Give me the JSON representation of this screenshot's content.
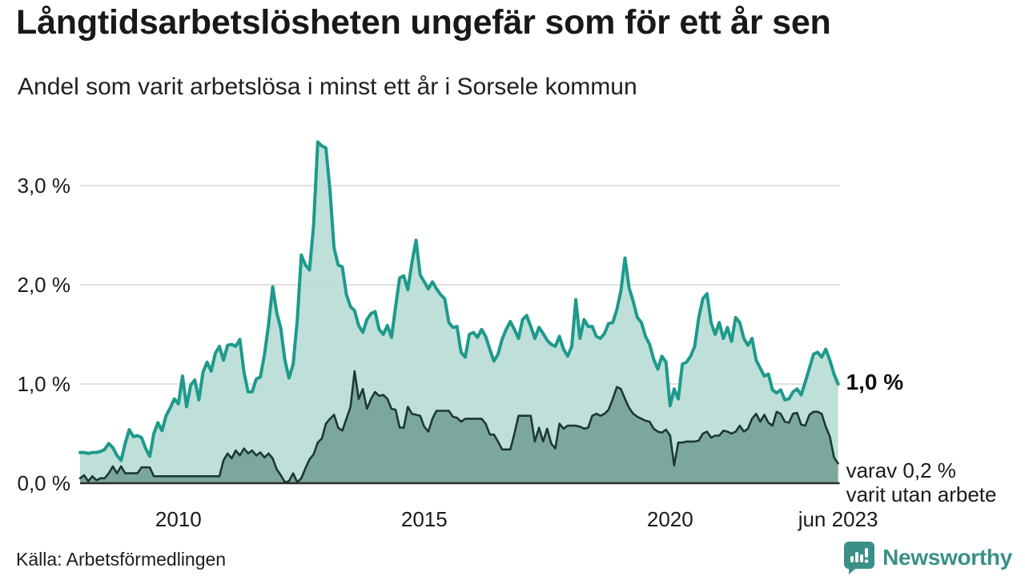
{
  "header": {
    "title": "Långtidsarbetslösheten ungefär som för ett år sen",
    "subtitle": "Andel som varit arbetslösa i minst ett år i Sorsele kommun"
  },
  "chart_data": {
    "type": "area",
    "unit": "%",
    "title": "Andel som varit arbetslösa i minst ett år i Sorsele kommun",
    "x_start_year": 2008,
    "x_end_label_year": 2023.4167,
    "points_per_year": 12,
    "grid": "horizontal",
    "ylim": [
      0,
      3.6
    ],
    "y_ticks": [
      {
        "label": "0,0 %",
        "value": 0
      },
      {
        "label": "1,0 %",
        "value": 1
      },
      {
        "label": "2,0 %",
        "value": 2
      },
      {
        "label": "3,0 %",
        "value": 3
      }
    ],
    "x_ticks": [
      {
        "label": "2010",
        "year": 2010
      },
      {
        "label": "2015",
        "year": 2015
      },
      {
        "label": "2020",
        "year": 2020
      },
      {
        "label": "jun 2023",
        "year": 2023.4167
      }
    ],
    "series": [
      {
        "name": "Andel arbetslösa i minst ett år",
        "line_color": "#1d9a8b",
        "fill_color": "#b8dcd5",
        "values": [
          0.31,
          0.31,
          0.3,
          0.31,
          0.31,
          0.32,
          0.34,
          0.4,
          0.36,
          0.28,
          0.23,
          0.4,
          0.54,
          0.47,
          0.48,
          0.46,
          0.35,
          0.27,
          0.5,
          0.61,
          0.53,
          0.68,
          0.76,
          0.85,
          0.8,
          1.08,
          0.77,
          0.99,
          1.04,
          0.84,
          1.12,
          1.22,
          1.13,
          1.31,
          1.38,
          1.24,
          1.39,
          1.4,
          1.38,
          1.45,
          1.12,
          0.92,
          0.92,
          1.05,
          1.07,
          1.3,
          1.6,
          1.98,
          1.72,
          1.56,
          1.24,
          1.06,
          1.2,
          1.64,
          2.3,
          2.2,
          2.15,
          2.6,
          3.44,
          3.4,
          3.38,
          2.95,
          2.37,
          2.2,
          2.18,
          1.9,
          1.78,
          1.74,
          1.59,
          1.52,
          1.65,
          1.71,
          1.73,
          1.55,
          1.5,
          1.59,
          1.47,
          1.78,
          2.07,
          2.09,
          1.95,
          2.23,
          2.45,
          2.1,
          2.03,
          1.96,
          2.03,
          1.96,
          1.9,
          1.86,
          1.62,
          1.57,
          1.58,
          1.32,
          1.27,
          1.5,
          1.52,
          1.47,
          1.55,
          1.48,
          1.35,
          1.23,
          1.3,
          1.45,
          1.55,
          1.63,
          1.55,
          1.46,
          1.65,
          1.69,
          1.58,
          1.46,
          1.57,
          1.51,
          1.44,
          1.4,
          1.38,
          1.48,
          1.35,
          1.28,
          1.38,
          1.85,
          1.46,
          1.65,
          1.58,
          1.58,
          1.48,
          1.46,
          1.51,
          1.61,
          1.62,
          1.75,
          1.94,
          2.27,
          1.97,
          1.83,
          1.67,
          1.62,
          1.48,
          1.4,
          1.25,
          1.15,
          1.28,
          1.22,
          0.78,
          0.95,
          0.85,
          1.2,
          1.22,
          1.28,
          1.38,
          1.67,
          1.86,
          1.91,
          1.62,
          1.5,
          1.62,
          1.46,
          1.57,
          1.43,
          1.67,
          1.62,
          1.46,
          1.39,
          1.46,
          1.24,
          1.16,
          1.08,
          1.1,
          0.94,
          0.91,
          0.94,
          0.84,
          0.85,
          0.92,
          0.95,
          0.89,
          1.02,
          1.16,
          1.3,
          1.32,
          1.27,
          1.35,
          1.24,
          1.1,
          1.0
        ]
      },
      {
        "name": "varav utan arbete",
        "line_color": "#1c3832",
        "fill_color": "#7aa59c",
        "values": [
          0.05,
          0.08,
          0.02,
          0.07,
          0.03,
          0.05,
          0.05,
          0.1,
          0.17,
          0.1,
          0.17,
          0.1,
          0.1,
          0.1,
          0.1,
          0.16,
          0.16,
          0.16,
          0.07,
          0.07,
          0.07,
          0.07,
          0.07,
          0.07,
          0.07,
          0.07,
          0.07,
          0.07,
          0.07,
          0.07,
          0.07,
          0.07,
          0.07,
          0.07,
          0.07,
          0.23,
          0.3,
          0.25,
          0.33,
          0.28,
          0.35,
          0.3,
          0.33,
          0.28,
          0.31,
          0.26,
          0.3,
          0.25,
          0.14,
          0.08,
          0.01,
          0.02,
          0.1,
          0.01,
          0.05,
          0.15,
          0.24,
          0.29,
          0.41,
          0.45,
          0.6,
          0.65,
          0.69,
          0.56,
          0.53,
          0.65,
          0.77,
          1.13,
          0.85,
          0.95,
          0.75,
          0.85,
          0.92,
          0.88,
          0.89,
          0.85,
          0.75,
          0.74,
          0.56,
          0.56,
          0.77,
          0.7,
          0.69,
          0.68,
          0.57,
          0.52,
          0.65,
          0.73,
          0.73,
          0.73,
          0.73,
          0.67,
          0.66,
          0.62,
          0.65,
          0.65,
          0.65,
          0.65,
          0.65,
          0.6,
          0.49,
          0.49,
          0.42,
          0.34,
          0.34,
          0.34,
          0.5,
          0.68,
          0.68,
          0.68,
          0.68,
          0.42,
          0.56,
          0.42,
          0.55,
          0.4,
          0.35,
          0.6,
          0.55,
          0.58,
          0.58,
          0.58,
          0.57,
          0.55,
          0.56,
          0.68,
          0.7,
          0.68,
          0.7,
          0.74,
          0.85,
          0.97,
          0.95,
          0.85,
          0.76,
          0.7,
          0.67,
          0.65,
          0.63,
          0.62,
          0.55,
          0.52,
          0.51,
          0.54,
          0.48,
          0.18,
          0.41,
          0.41,
          0.42,
          0.42,
          0.42,
          0.43,
          0.5,
          0.52,
          0.46,
          0.48,
          0.48,
          0.53,
          0.52,
          0.5,
          0.52,
          0.58,
          0.52,
          0.55,
          0.65,
          0.7,
          0.62,
          0.69,
          0.61,
          0.58,
          0.72,
          0.7,
          0.62,
          0.61,
          0.7,
          0.71,
          0.59,
          0.58,
          0.69,
          0.72,
          0.72,
          0.7,
          0.57,
          0.47,
          0.26,
          0.2
        ]
      }
    ],
    "end_labels": {
      "total": "1,0 %",
      "annotation_line1": "varav 0,2 %",
      "annotation_line2": "varit utan arbete"
    }
  },
  "footer": {
    "source": "Källa: Arbetsförmedlingen",
    "logo_text": "Newsworthy"
  },
  "colors": {
    "total_line": "#1d9a8b",
    "total_fill": "#b8dcd5",
    "subset_line": "#1c3832",
    "subset_fill": "#7aa59c",
    "gridline": "#e0e0e0",
    "baseline": "#2d2d2d",
    "text": "#1a1a1a",
    "logo_teal": "#3a9087"
  }
}
